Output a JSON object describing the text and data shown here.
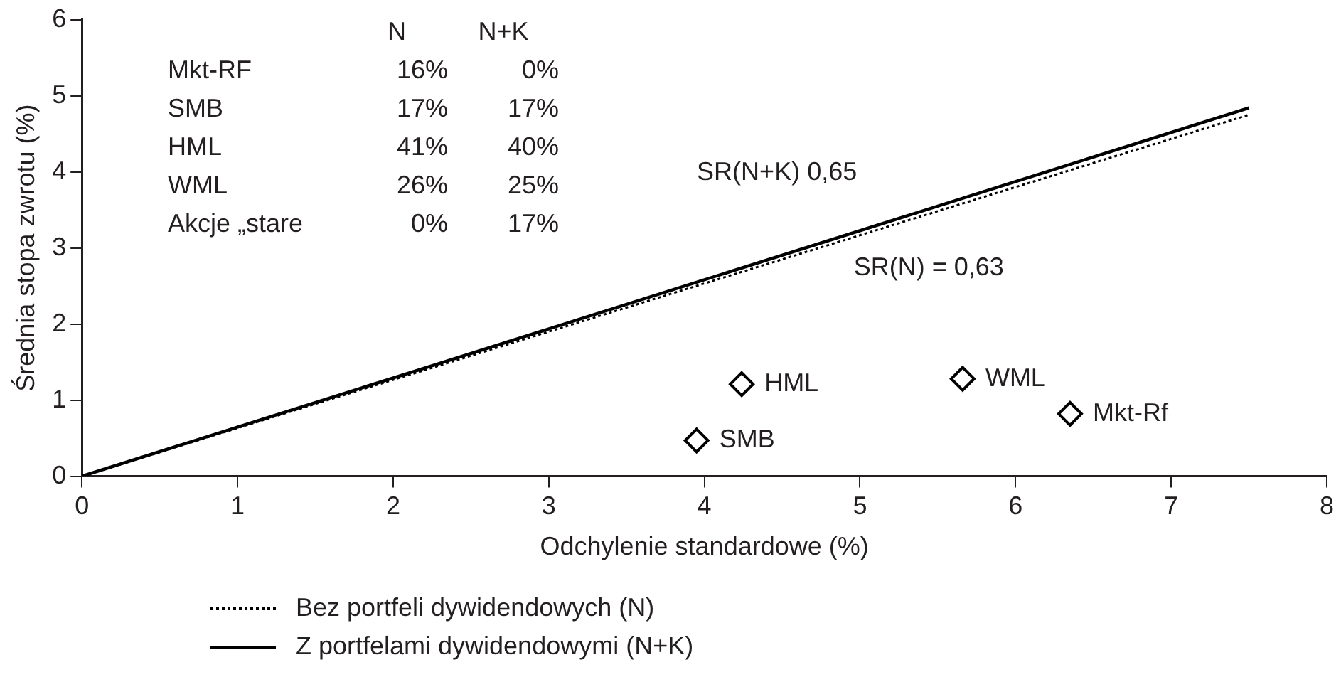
{
  "chart_data": {
    "type": "scatter",
    "xlabel": "Odchylenie standardowe (%)",
    "ylabel": "Średnia stopa zwrotu (%)",
    "xlim": [
      0,
      8
    ],
    "xticks": [
      0,
      1,
      2,
      3,
      4,
      5,
      6,
      7,
      8
    ],
    "ylim": [
      0,
      6
    ],
    "yticks": [
      0,
      1,
      2,
      3,
      4,
      5,
      6
    ],
    "grid": false,
    "legend": "bottom",
    "series": [
      {
        "name": "Bez portfeli dywidendowych (N)",
        "type": "line",
        "line_style": "dotted",
        "marker": "none",
        "color": "#000000",
        "x": [
          0,
          7.5
        ],
        "values": [
          0,
          4.75
        ]
      },
      {
        "name": "Z portfelami dywidendowymi (N+K)",
        "type": "line",
        "line_style": "solid",
        "marker": "none",
        "color": "#000000",
        "x": [
          0,
          7.5
        ],
        "values": [
          0,
          4.84
        ]
      },
      {
        "name": "SMB",
        "marker": "diamond",
        "color": "#000000",
        "x": [
          3.95
        ],
        "values": [
          0.47
        ]
      },
      {
        "name": "HML",
        "marker": "diamond",
        "color": "#000000",
        "x": [
          4.24
        ],
        "values": [
          1.21
        ]
      },
      {
        "name": "WML",
        "marker": "diamond",
        "color": "#000000",
        "x": [
          5.66
        ],
        "values": [
          1.28
        ]
      },
      {
        "name": "Mkt-Rf",
        "marker": "diamond",
        "color": "#000000",
        "x": [
          6.35
        ],
        "values": [
          0.82
        ]
      }
    ],
    "annotations": [
      "N",
      "N+K",
      "Mkt-RF",
      "16%",
      "0%",
      "SMB",
      "17%",
      "17%",
      "HML",
      "41%",
      "40%",
      "WML",
      "26%",
      "25%",
      "Akcje „stare",
      "0%",
      "17%",
      "SR(N+K) 0,65",
      "SR(N) = 0,63"
    ]
  }
}
